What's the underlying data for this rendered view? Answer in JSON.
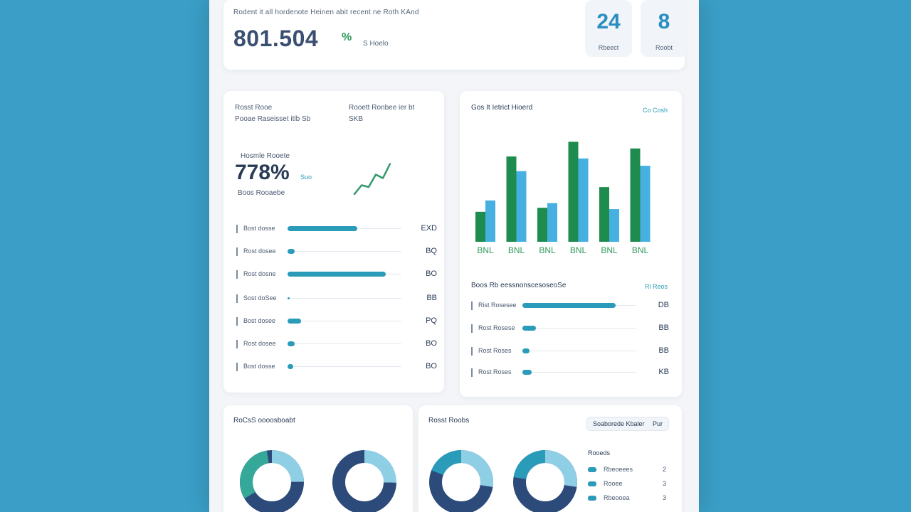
{
  "header": {
    "caption": "Rodent it all hordenote Heinen abit recent ne Roth KAnd",
    "value": "801.504",
    "delta": "%",
    "sub": "S Hoelo",
    "stats": [
      {
        "value": "24",
        "label": "Rbeect"
      },
      {
        "value": "8",
        "label": "Roobt"
      }
    ]
  },
  "metrics": {
    "head_left_1": "Rosst Rooe",
    "head_left_2": "Pooae Raseisset itlb Sb",
    "head_right_1": "Rooett Ronbee ier bt",
    "head_right_2": "SKB",
    "sub_caption": "Hosmle Rooete",
    "big_value": "778%",
    "big_delta": "Suo",
    "big_sub": "Boos Rooaebe",
    "sparkline": [
      0.1,
      0.35,
      0.3,
      0.65,
      0.55,
      0.95
    ],
    "rows": [
      {
        "label": "Bost dosse",
        "value": "EXD",
        "fraction": 0.61
      },
      {
        "label": "Rost dosee",
        "value": "BQ",
        "fraction": 0.06
      },
      {
        "label": "Rost dosne",
        "value": "BO",
        "fraction": 0.86
      },
      {
        "label": "Sost doSee",
        "value": "BB",
        "fraction": 0.0
      },
      {
        "label": "Bost dosee",
        "value": "PQ",
        "fraction": 0.12
      },
      {
        "label": "Rost dosee",
        "value": "BO",
        "fraction": 0.06
      },
      {
        "label": "Bost dosse",
        "value": "BO",
        "fraction": 0.05
      }
    ]
  },
  "chart": {
    "title": "Gos It Ietrict Hioerd",
    "link": "Co Cosh",
    "list_title": "Boos Rb eessnonscesoseoSe",
    "list_link": "Rl Reos",
    "colors": {
      "series_a": "#1e8c4e",
      "series_b": "#46b0e0"
    },
    "rows": [
      {
        "label": "Rist Rosesee",
        "value": "DB",
        "fraction": 0.82
      },
      {
        "label": "Rost Rosese",
        "value": "BB",
        "fraction": 0.12
      },
      {
        "label": "Rost Roses",
        "value": "BB",
        "fraction": 0.06
      },
      {
        "label": "Rost Roses",
        "value": "KB",
        "fraction": 0.08
      }
    ]
  },
  "chart_data": {
    "type": "bar",
    "categories": [
      "BNL",
      "BNL",
      "BNL",
      "BNL",
      "BNL",
      "BNL"
    ],
    "series": [
      {
        "values": [
          45,
          128,
          51,
          150,
          82,
          140
        ]
      },
      {
        "values": [
          62,
          106,
          58,
          125,
          49,
          114
        ]
      }
    ],
    "ylim": [
      0,
      160
    ],
    "grid": false
  },
  "bottom": {
    "left_title": "RoCsS oooosboabt",
    "right_title": "Rosst Roobs",
    "filter_label": "Soaborede Kbaler",
    "filter_pill": "Pur",
    "legend_title": "Rooeds",
    "legend": [
      {
        "label": "Rbeoeees",
        "value": "2"
      },
      {
        "label": "Rooee",
        "value": "3"
      },
      {
        "label": "Rbeooea",
        "value": "3"
      }
    ],
    "donut_colors": {
      "dark": "#2c4a7a",
      "teal": "#2a9bb8",
      "light": "#8fcfe6",
      "green": "#36a89a"
    }
  }
}
